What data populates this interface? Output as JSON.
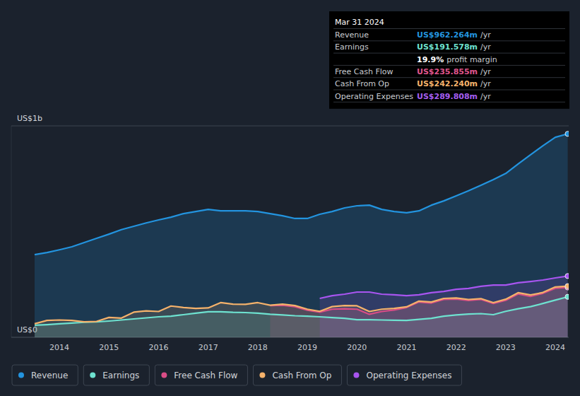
{
  "chart_data": {
    "type": "area",
    "x": [
      2013.5,
      2013.75,
      2014,
      2014.25,
      2014.5,
      2014.75,
      2015,
      2015.25,
      2015.5,
      2015.75,
      2016,
      2016.25,
      2016.5,
      2016.75,
      2017,
      2017.25,
      2017.5,
      2017.75,
      2018,
      2018.25,
      2018.5,
      2018.75,
      2019,
      2019.25,
      2019.5,
      2019.75,
      2020,
      2020.25,
      2020.5,
      2020.75,
      2021,
      2021.25,
      2021.5,
      2021.75,
      2022,
      2022.25,
      2022.5,
      2022.75,
      2023,
      2023.25,
      2023.5,
      2023.75,
      2024,
      2024.25
    ],
    "xlim": [
      2013.03,
      2024.27
    ],
    "xticks": [
      2014,
      2015,
      2016,
      2017,
      2018,
      2019,
      2020,
      2021,
      2022,
      2023,
      2024
    ],
    "ylim": [
      0,
      1000
    ],
    "yticks": [
      {
        "value": 0,
        "label": "US$0"
      },
      {
        "value": 1000,
        "label": "US$1b"
      }
    ],
    "grid": true,
    "legend": "bottom-left",
    "series": [
      {
        "name": "Revenue",
        "color": "#2394df",
        "values": [
          391,
          401,
          414,
          428,
          448,
          468,
          488,
          509,
          525,
          541,
          555,
          568,
          585,
          595,
          605,
          598,
          598,
          598,
          595,
          585,
          575,
          562,
          562,
          582,
          595,
          612,
          622,
          625,
          605,
          595,
          589,
          598,
          625,
          645,
          669,
          693,
          719,
          746,
          775,
          820,
          863,
          906,
          946,
          962.264
        ]
      },
      {
        "name": "Earnings",
        "color": "#6ee2d0",
        "values": [
          57,
          60,
          64,
          67,
          71,
          73,
          77,
          82,
          87,
          92,
          97,
          100,
          107,
          114,
          121,
          121,
          118,
          117,
          114,
          109,
          106,
          102,
          100,
          97,
          93,
          90,
          83,
          83,
          82,
          81,
          80,
          85,
          90,
          100,
          106,
          110,
          112,
          107,
          123,
          135,
          145,
          160,
          176,
          191.578
        ]
      },
      {
        "name": "Free Cash Flow",
        "color": "#d94d86",
        "values": [
          null,
          null,
          null,
          null,
          null,
          null,
          null,
          null,
          null,
          null,
          null,
          null,
          null,
          null,
          null,
          null,
          null,
          null,
          null,
          150,
          152,
          145,
          128,
          119,
          133,
          135,
          133,
          109,
          122,
          129,
          141,
          167,
          162,
          179,
          181,
          174,
          179,
          160,
          175,
          205,
          193,
          208,
          232,
          235.855
        ]
      },
      {
        "name": "Cash From Op",
        "color": "#f5b26b",
        "values": [
          64,
          80,
          82,
          80,
          73,
          75,
          94,
          91,
          119,
          125,
          122,
          148,
          141,
          137,
          139,
          164,
          157,
          156,
          164,
          152,
          157,
          150,
          133,
          123,
          145,
          150,
          149,
          122,
          133,
          137,
          144,
          171,
          167,
          184,
          186,
          179,
          183,
          164,
          180,
          211,
          200,
          212,
          238,
          242.24
        ]
      },
      {
        "name": "Operating Expenses",
        "color": "#a855f0",
        "values": [
          null,
          null,
          null,
          null,
          null,
          null,
          null,
          null,
          null,
          null,
          null,
          null,
          null,
          null,
          null,
          null,
          null,
          null,
          null,
          null,
          null,
          null,
          null,
          184,
          197,
          204,
          214,
          214,
          204,
          201,
          197,
          201,
          211,
          217,
          227,
          231,
          241,
          247,
          247,
          258,
          264,
          271,
          281,
          289.808
        ]
      }
    ],
    "annotations": [
      {
        "type": "tooltip",
        "title": "Mar 31 2024",
        "rows": [
          {
            "label": "Revenue",
            "value": "US$962.264m",
            "unit": "/yr",
            "color": "#2394df"
          },
          {
            "label": "Earnings",
            "value": "US$191.578m",
            "unit": "/yr",
            "color": "#6ee2d0"
          },
          {
            "value": "19.9%",
            "unit": "profit margin",
            "color": "#ffffff"
          },
          {
            "label": "Free Cash Flow",
            "value": "US$235.855m",
            "unit": "/yr",
            "color": "#e0558e"
          },
          {
            "label": "Cash From Op",
            "value": "US$242.240m",
            "unit": "/yr",
            "color": "#f5b26b"
          },
          {
            "label": "Operating Expenses",
            "value": "US$289.808m",
            "unit": "/yr",
            "color": "#a55ef0"
          }
        ]
      }
    ]
  }
}
